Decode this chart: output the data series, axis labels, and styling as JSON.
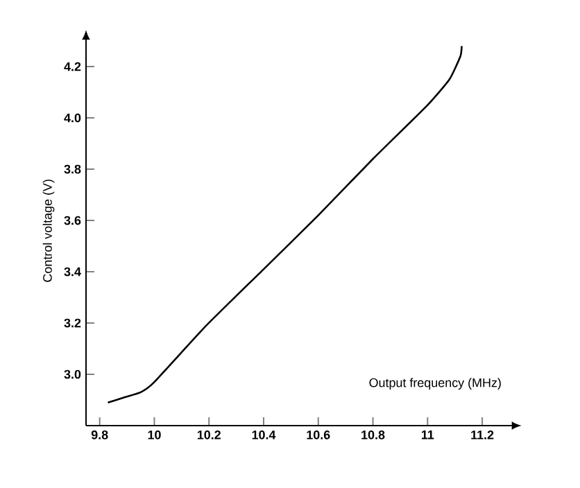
{
  "chart_data": {
    "type": "line",
    "xlabel": "Output frequency (MHz)",
    "ylabel": "Control voltage (V)",
    "x": [
      9.83,
      9.89,
      9.95,
      10.0,
      10.19,
      10.4,
      10.6,
      10.8,
      11.0,
      11.08,
      11.12,
      11.125
    ],
    "series": [
      {
        "color": "#000000",
        "values": [
          2.89,
          2.91,
          2.93,
          2.97,
          3.19,
          3.41,
          3.62,
          3.84,
          4.05,
          4.15,
          4.24,
          4.28
        ]
      }
    ],
    "xlim": [
      9.75,
      11.32
    ],
    "ylim": [
      2.8,
      4.32
    ],
    "xticks": [
      9.8,
      10,
      10.2,
      10.4,
      10.6,
      10.8,
      11,
      11.2
    ],
    "yticks": [
      {
        "value": 3.0,
        "label": "3.0"
      },
      {
        "value": 3.2,
        "label": "3.2"
      },
      {
        "value": 3.4,
        "label": "3.4"
      },
      {
        "value": 3.6,
        "label": "3.6"
      },
      {
        "value": 3.8,
        "label": "3.8"
      },
      {
        "value": 4.0,
        "label": "4.0"
      },
      {
        "value": 4.2,
        "label": "4.2"
      }
    ],
    "grid": false,
    "marker": "none",
    "line_style": "solid"
  }
}
